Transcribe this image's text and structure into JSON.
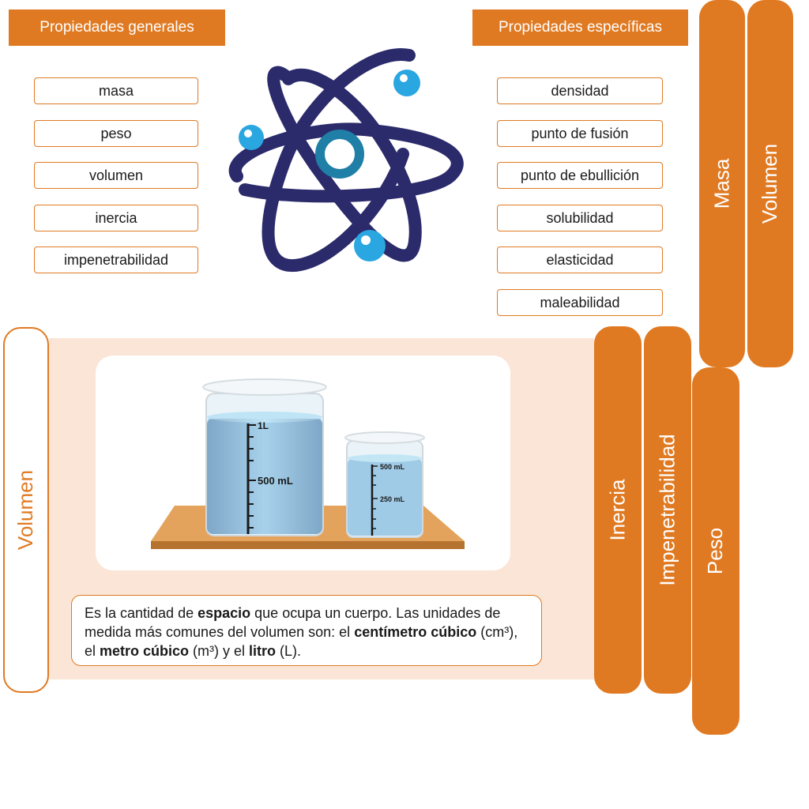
{
  "general": {
    "header": "Propiedades generales",
    "items": [
      "masa",
      "peso",
      "volumen",
      "inercia",
      "impenetrabilidad"
    ]
  },
  "specific": {
    "header": "Propiedades específicas",
    "items": [
      "densidad",
      "punto de fusión",
      "punto de ebullición",
      "solubilidad",
      "elasticidad",
      "maleabilidad"
    ]
  },
  "tabs": {
    "masa": "Masa",
    "volumen_top": "Volumen",
    "inercia": "Inercia",
    "impenetrabilidad": "Impenetrabilidad",
    "peso": "Peso"
  },
  "active_tab": {
    "label": "Volumen"
  },
  "beakers": {
    "big_top": "1L",
    "big_mid": "500 mL",
    "small_top": "500 mL",
    "small_mid": "250 mL"
  },
  "description": {
    "p1": "Es la cantidad de ",
    "b1": "espacio",
    "p2": " que ocupa un cuerpo. Las unidades de medida más comunes del volumen son: el ",
    "b2": "centímetro cúbico",
    "p3": " (cm³), el ",
    "b3": "metro cúbico",
    "p4": " (m³) y el ",
    "b4": "litro",
    "p5": " (L)."
  },
  "colors": {
    "accent": "#e07a22",
    "panel": "#fbe5d6",
    "atom": "#2b2a6b",
    "electron": "#2aa6e0"
  }
}
